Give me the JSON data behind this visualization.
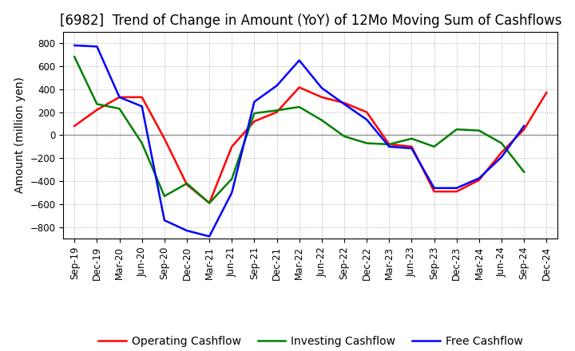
{
  "title": "[6982]  Trend of Change in Amount (YoY) of 12Mo Moving Sum of Cashflows",
  "ylabel": "Amount (million yen)",
  "x_labels": [
    "Sep-19",
    "Dec-19",
    "Mar-20",
    "Jun-20",
    "Sep-20",
    "Dec-20",
    "Mar-21",
    "Jun-21",
    "Sep-21",
    "Dec-21",
    "Mar-22",
    "Jun-22",
    "Sep-22",
    "Dec-22",
    "Mar-23",
    "Jun-23",
    "Sep-23",
    "Dec-23",
    "Mar-24",
    "Jun-24",
    "Sep-24",
    "Dec-24"
  ],
  "operating": [
    80,
    220,
    330,
    330,
    -30,
    -430,
    -590,
    -100,
    120,
    200,
    415,
    330,
    280,
    200,
    -80,
    -100,
    -490,
    -490,
    -390,
    -150,
    50,
    370
  ],
  "investing": [
    680,
    270,
    230,
    -70,
    -530,
    -420,
    -590,
    -380,
    190,
    215,
    245,
    130,
    -10,
    -70,
    -80,
    -30,
    -100,
    50,
    40,
    -70,
    -320,
    null
  ],
  "free": [
    780,
    770,
    330,
    250,
    -740,
    -830,
    -880,
    -500,
    290,
    430,
    650,
    410,
    270,
    135,
    -100,
    -115,
    -460,
    -460,
    -375,
    -190,
    80,
    null
  ],
  "ylim": [
    -900,
    900
  ],
  "yticks": [
    -800,
    -600,
    -400,
    -200,
    0,
    200,
    400,
    600,
    800
  ],
  "operating_color": "#ff0000",
  "investing_color": "#008000",
  "free_color": "#0000ff",
  "bg_color": "#ffffff",
  "grid_color": "#aaaaaa",
  "zero_line_color": "#888888",
  "title_fontsize": 12,
  "axis_label_fontsize": 10,
  "tick_fontsize": 8.5,
  "legend_fontsize": 10,
  "linewidth": 1.8
}
